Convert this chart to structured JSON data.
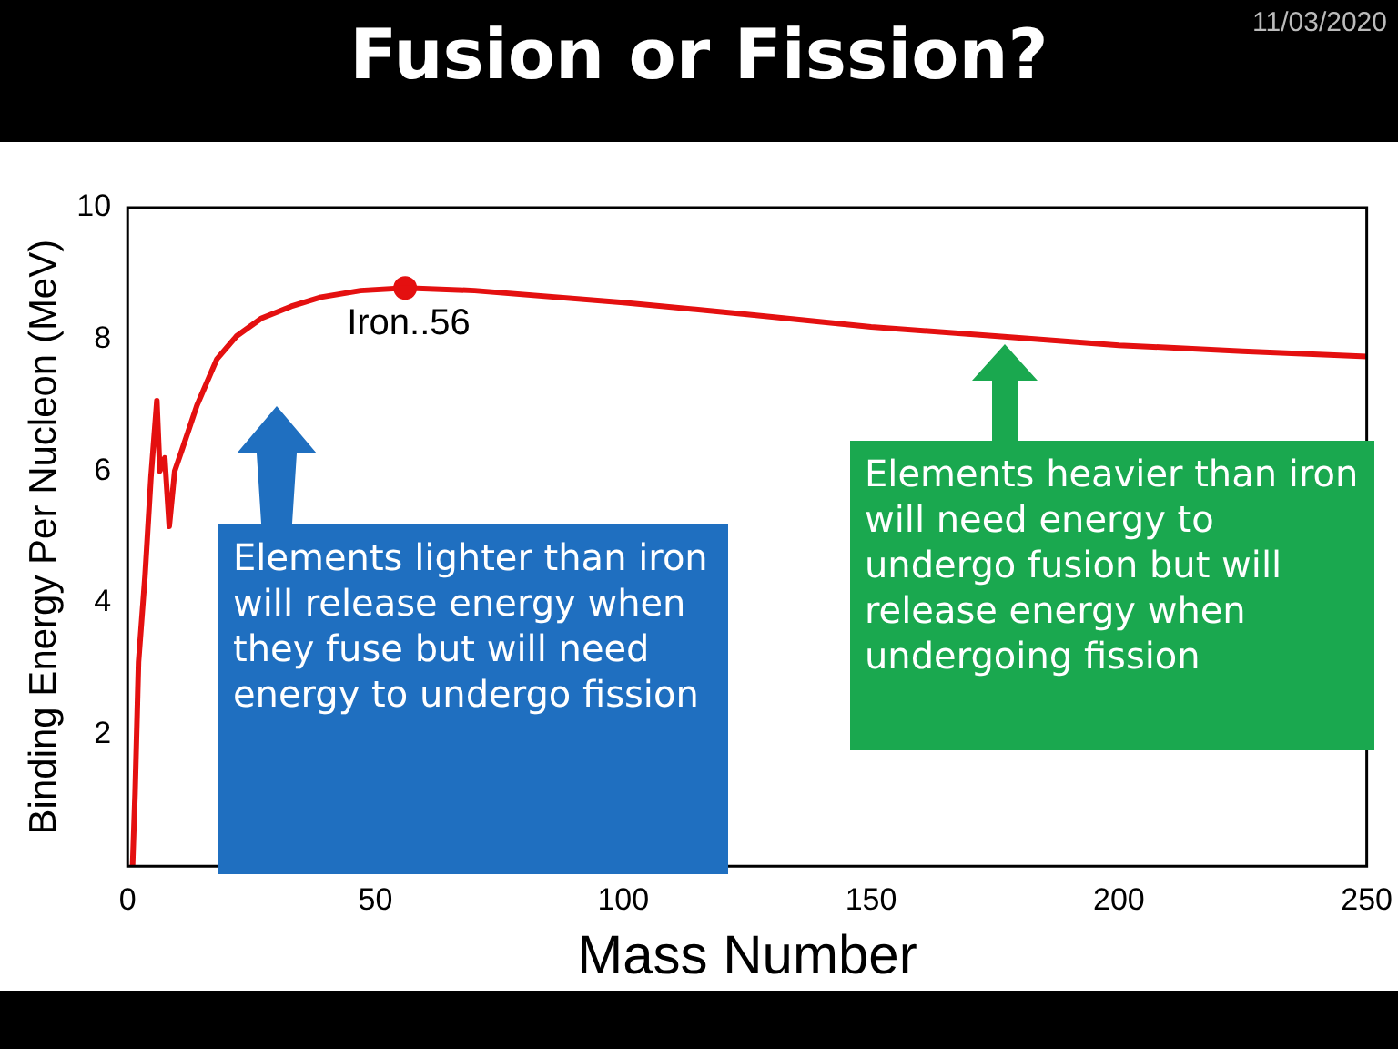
{
  "chart_data": {
    "type": "line",
    "title": "Fusion or Fission?",
    "xlabel": "Mass Number",
    "ylabel": "Binding Energy Per Nucleon (MeV)",
    "x": [
      1,
      1.5,
      2.2,
      3.5,
      4.7,
      5.9,
      6.5,
      7.5,
      8.4,
      9.5,
      11,
      14,
      18,
      22,
      27,
      33,
      39,
      47,
      56,
      70,
      100,
      125,
      150,
      175,
      200,
      225,
      250
    ],
    "series": [
      {
        "color": "#e41010",
        "values": [
          0,
          1.1,
          3.1,
          4.4,
          5.9,
          7.07,
          6.0,
          6.2,
          5.16,
          6.0,
          6.33,
          7.0,
          7.7,
          8.05,
          8.32,
          8.5,
          8.64,
          8.74,
          8.78,
          8.74,
          8.56,
          8.38,
          8.19,
          8.05,
          7.91,
          7.82,
          7.74
        ]
      },
      {
        "type": "scatter",
        "x": [
          56
        ],
        "color": "#e41010",
        "marker": "circle",
        "values": [
          8.78
        ]
      }
    ],
    "xlim": [
      0,
      250
    ],
    "xticks": [
      0,
      50,
      100,
      150,
      200,
      250
    ],
    "ylim": [
      0,
      10
    ],
    "yticks": [
      2,
      4,
      6,
      8,
      10
    ],
    "grid": false,
    "legend": false,
    "marker": "none",
    "line_style": "solid",
    "annotations": [
      {
        "text": "Iron..56",
        "x": 56,
        "y": 8.78
      },
      "11/03/2020",
      "Elements lighter than iron will release energy when they fuse but will need energy to undergo fission",
      "Elements heavier than iron will need energy to undergo fusion but will release energy when undergoing fission"
    ]
  }
}
